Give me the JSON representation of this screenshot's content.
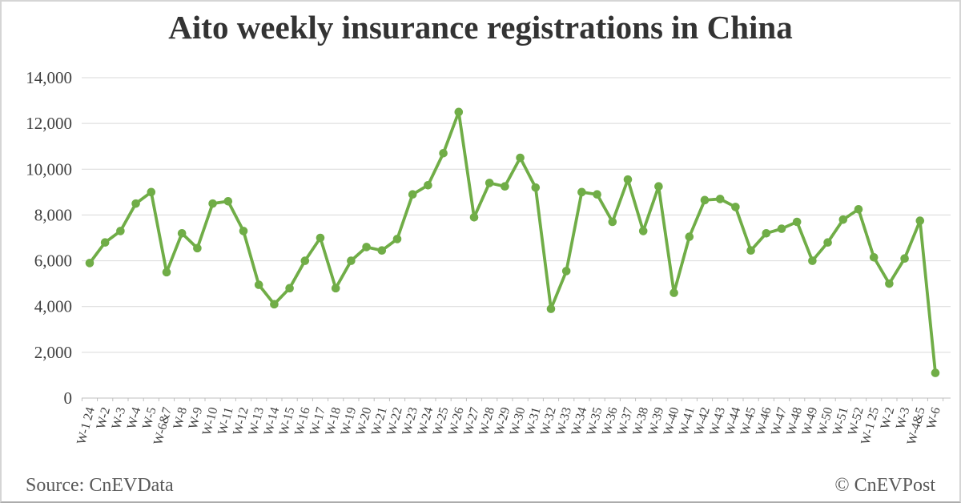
{
  "title": "Aito weekly insurance registrations in China",
  "footer": {
    "source": "Source: CnEVData",
    "copyright": "© CnEVPost"
  },
  "colors": {
    "line": "#70AD47",
    "grid": "#D9D9D9",
    "axis": "#BFBFBF",
    "title_text": "#333333",
    "tick_text": "#404040",
    "footer_text": "#595959"
  },
  "chart_data": {
    "type": "line",
    "title": "Aito weekly insurance registrations in China",
    "xlabel": "",
    "ylabel": "",
    "grid": "horizontal",
    "legend": "none",
    "marker": "circle",
    "ylim": [
      0,
      14000
    ],
    "yticks": [
      0,
      2000,
      4000,
      6000,
      8000,
      10000,
      12000,
      14000
    ],
    "ytick_labels": [
      "0",
      "2,000",
      "4,000",
      "6,000",
      "8,000",
      "10,000",
      "12,000",
      "14,000"
    ],
    "categories": [
      "W-1 24",
      "W-2",
      "W-3",
      "W-4",
      "W-5",
      "W-6&7",
      "W-8",
      "W-9",
      "W-10",
      "W-11",
      "W-12",
      "W-13",
      "W-14",
      "W-15",
      "W-16",
      "W-17",
      "W-18",
      "W-19",
      "W-20",
      "W-21",
      "W-22",
      "W-23",
      "W-24",
      "W-25",
      "W-26",
      "W-27",
      "W-28",
      "W-29",
      "W-30",
      "W-31",
      "W-32",
      "W-33",
      "W-34",
      "W-35",
      "W-36",
      "W-37",
      "W-38",
      "W-39",
      "W-40",
      "W-41",
      "W-42",
      "W-43",
      "W-44",
      "W-45",
      "W-46",
      "W-47",
      "W-48",
      "W-49",
      "W-50",
      "W-51",
      "W-52",
      "W-1 25",
      "W-2",
      "W-3",
      "W-4&5",
      "W-6"
    ],
    "values": [
      5900,
      6800,
      7300,
      8500,
      9000,
      5500,
      7200,
      6550,
      8500,
      8600,
      7300,
      4950,
      4100,
      4800,
      6000,
      7000,
      4800,
      6000,
      6600,
      6450,
      6950,
      8900,
      9300,
      10700,
      12500,
      7900,
      9400,
      9250,
      10500,
      9200,
      3900,
      5550,
      9000,
      8900,
      7700,
      9550,
      7300,
      9250,
      4600,
      7050,
      8650,
      8700,
      8350,
      6450,
      7200,
      7400,
      7700,
      6000,
      6800,
      7800,
      8250,
      6150,
      5000,
      6100,
      7750,
      1100
    ]
  }
}
